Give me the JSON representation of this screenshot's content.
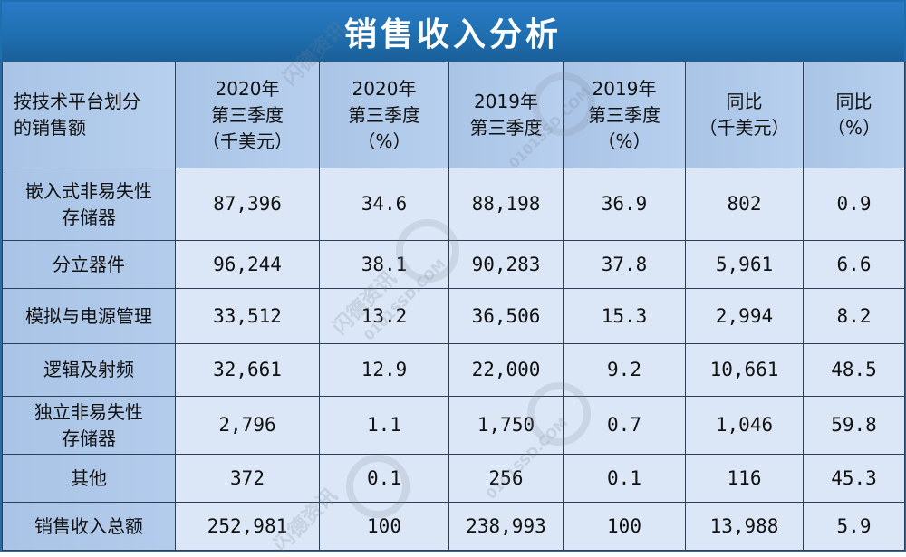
{
  "title": "销售收入分析",
  "table": {
    "headers": [
      [
        "按技术平台划分",
        "的销售额"
      ],
      [
        "2020年",
        "第三季度",
        "（千美元）"
      ],
      [
        "2020年",
        "第三季度",
        "（%）"
      ],
      [
        "2019年",
        "第三季度"
      ],
      [
        "2019年",
        "第三季度",
        "（%）"
      ],
      [
        "同比",
        "（千美元）"
      ],
      [
        "同比",
        "（%）"
      ]
    ],
    "rows": [
      {
        "label": [
          "嵌入式非易失性",
          "存储器"
        ],
        "cells": [
          "87,396",
          "34.6",
          "88,198",
          "36.9",
          "802",
          "0.9"
        ]
      },
      {
        "label": [
          "分立器件"
        ],
        "cells": [
          "96,244",
          "38.1",
          "90,283",
          "37.8",
          "5,961",
          "6.6"
        ]
      },
      {
        "label": [
          "模拟与电源管理"
        ],
        "cells": [
          "33,512",
          "13.2",
          "36,506",
          "15.3",
          "2,994",
          "8.2"
        ]
      },
      {
        "label": [
          "逻辑及射频"
        ],
        "cells": [
          "32,661",
          "12.9",
          "22,000",
          "9.2",
          "10,661",
          "48.5"
        ]
      },
      {
        "label": [
          "独立非易失性",
          "存储器"
        ],
        "cells": [
          "2,796",
          "1.1",
          "1,750",
          "0.7",
          "1,046",
          "59.8"
        ]
      },
      {
        "label": [
          "其他"
        ],
        "cells": [
          "372",
          "0.1",
          "256",
          "0.1",
          "116",
          "45.3"
        ]
      },
      {
        "label": [
          "销售收入总额"
        ],
        "cells": [
          "252,981",
          "100",
          "238,993",
          "100",
          "13,988",
          "5.9"
        ]
      }
    ]
  },
  "watermark": {
    "brand": "闪德资讯",
    "site": "0101SSD.COM"
  },
  "colors": {
    "title_bar": "#1f6fb0",
    "header_fill": "#b8d0ee",
    "cell_fill": "#dbe7f6",
    "border": "#2b3f58"
  }
}
